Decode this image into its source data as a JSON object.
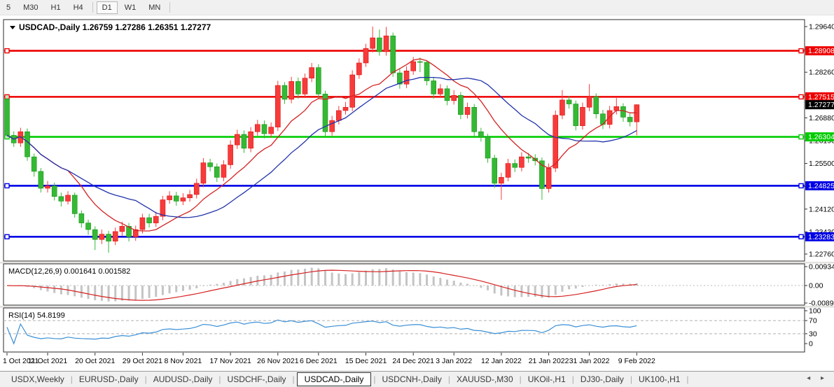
{
  "toolbar": {
    "timeframes": [
      "5",
      "M30",
      "H1",
      "H4",
      "D1",
      "W1",
      "MN"
    ],
    "active": "D1",
    "separators_after": [
      "H4",
      "MN"
    ]
  },
  "title_bar": {
    "collapse_icon": "▼",
    "symbol_label": "USDCAD-,Daily",
    "ohlc": "1.26759 1.27286 1.26351 1.27277"
  },
  "chart_data": {
    "type": "candlestick",
    "symbol": "USDCAD-",
    "period": "Daily",
    "ohlc_current": {
      "open": 1.26759,
      "high": 1.27286,
      "low": 1.26351,
      "close": 1.27277
    },
    "y_axis": {
      "min": 1.2276,
      "max": 1.2964,
      "tick_labels": [
        "1.29640",
        "1.28950",
        "1.28260",
        "1.27570",
        "1.26880",
        "1.26190",
        "1.25500",
        "1.24810",
        "1.24120",
        "1.23430",
        "1.22760"
      ],
      "tick_values": [
        1.2964,
        1.2895,
        1.2826,
        1.2757,
        1.2688,
        1.2619,
        1.255,
        1.2481,
        1.2412,
        1.2343,
        1.2276
      ]
    },
    "x_labels": [
      "1 Oct 2021",
      "11 Oct 2021",
      "20 Oct 2021",
      "29 Oct 2021",
      "8 Nov 2021",
      "17 Nov 2021",
      "26 Nov 2021",
      "6 Dec 2021",
      "15 Dec 2021",
      "24 Dec 2021",
      "3 Jan 2022",
      "12 Jan 2022",
      "21 Jan 2022",
      "31 Jan 2022",
      "9 Feb 2022"
    ],
    "x_label_indices": [
      0,
      6,
      13,
      20,
      26,
      33,
      40,
      46,
      53,
      60,
      66,
      73,
      80,
      86,
      93
    ],
    "candles": [
      [
        1.2745,
        1.2757,
        1.2623,
        1.2635
      ],
      [
        1.2635,
        1.2647,
        1.26,
        1.2612
      ],
      [
        1.2612,
        1.2658,
        1.26,
        1.2646
      ],
      [
        1.2646,
        1.2656,
        1.2558,
        1.257
      ],
      [
        1.257,
        1.258,
        1.251,
        1.2526
      ],
      [
        1.2526,
        1.2536,
        1.2462,
        1.2475
      ],
      [
        1.2475,
        1.2497,
        1.2462,
        1.2482
      ],
      [
        1.2482,
        1.2492,
        1.2438,
        1.245
      ],
      [
        1.245,
        1.2462,
        1.242,
        1.2436
      ],
      [
        1.2436,
        1.2466,
        1.2426,
        1.2454
      ],
      [
        1.2454,
        1.2462,
        1.2386,
        1.2398
      ],
      [
        1.2398,
        1.2408,
        1.2356,
        1.237
      ],
      [
        1.237,
        1.238,
        1.2334,
        1.235
      ],
      [
        1.235,
        1.236,
        1.2288,
        1.232
      ],
      [
        1.232,
        1.235,
        1.2306,
        1.2336
      ],
      [
        1.2336,
        1.2346,
        1.228,
        1.2315
      ],
      [
        1.2315,
        1.2356,
        1.2303,
        1.2344
      ],
      [
        1.2344,
        1.2374,
        1.233,
        1.236
      ],
      [
        1.236,
        1.237,
        1.2314,
        1.2328
      ],
      [
        1.2328,
        1.2362,
        1.2316,
        1.235
      ],
      [
        1.235,
        1.2398,
        1.2338,
        1.2386
      ],
      [
        1.2386,
        1.2398,
        1.2356,
        1.237
      ],
      [
        1.237,
        1.2404,
        1.2358,
        1.239
      ],
      [
        1.239,
        1.2452,
        1.2378,
        1.244
      ],
      [
        1.244,
        1.2466,
        1.2428,
        1.2452
      ],
      [
        1.2452,
        1.2464,
        1.2422,
        1.2436
      ],
      [
        1.2436,
        1.246,
        1.2424,
        1.2446
      ],
      [
        1.2446,
        1.247,
        1.2434,
        1.2456
      ],
      [
        1.2456,
        1.2504,
        1.2444,
        1.249
      ],
      [
        1.249,
        1.2566,
        1.2478,
        1.2552
      ],
      [
        1.2552,
        1.2564,
        1.2526,
        1.254
      ],
      [
        1.254,
        1.255,
        1.2494,
        1.2508
      ],
      [
        1.2508,
        1.256,
        1.2496,
        1.2546
      ],
      [
        1.2546,
        1.262,
        1.2534,
        1.2606
      ],
      [
        1.2606,
        1.2652,
        1.2594,
        1.2638
      ],
      [
        1.2638,
        1.265,
        1.2582,
        1.2596
      ],
      [
        1.2596,
        1.266,
        1.2584,
        1.2646
      ],
      [
        1.2646,
        1.2682,
        1.2634,
        1.2668
      ],
      [
        1.2668,
        1.268,
        1.2626,
        1.264
      ],
      [
        1.264,
        1.2674,
        1.2628,
        1.266
      ],
      [
        1.266,
        1.28,
        1.2648,
        1.2786
      ],
      [
        1.2786,
        1.2796,
        1.273,
        1.2744
      ],
      [
        1.2744,
        1.2812,
        1.2732,
        1.2798
      ],
      [
        1.2798,
        1.281,
        1.2746,
        1.276
      ],
      [
        1.276,
        1.2822,
        1.2748,
        1.2808
      ],
      [
        1.2808,
        1.2854,
        1.2796,
        1.284
      ],
      [
        1.284,
        1.285,
        1.2746,
        1.276
      ],
      [
        1.276,
        1.277,
        1.2632,
        1.2646
      ],
      [
        1.2646,
        1.2694,
        1.2634,
        1.268
      ],
      [
        1.268,
        1.2724,
        1.2668,
        1.271
      ],
      [
        1.271,
        1.2736,
        1.2698,
        1.272
      ],
      [
        1.272,
        1.2832,
        1.2708,
        1.2818
      ],
      [
        1.2818,
        1.2868,
        1.2806,
        1.2854
      ],
      [
        1.2854,
        1.2912,
        1.2842,
        1.2898
      ],
      [
        1.2898,
        1.2964,
        1.2886,
        1.293
      ],
      [
        1.293,
        1.2955,
        1.2876,
        1.2888
      ],
      [
        1.2888,
        1.2963,
        1.2876,
        1.2936
      ],
      [
        1.2936,
        1.2946,
        1.2812,
        1.2824
      ],
      [
        1.2824,
        1.2836,
        1.2776,
        1.279
      ],
      [
        1.279,
        1.2844,
        1.2778,
        1.283
      ],
      [
        1.283,
        1.2872,
        1.2818,
        1.2858
      ],
      [
        1.2858,
        1.287,
        1.2826,
        1.2856
      ],
      [
        1.2856,
        1.2862,
        1.2786,
        1.28
      ],
      [
        1.28,
        1.281,
        1.2746,
        1.276
      ],
      [
        1.276,
        1.279,
        1.2748,
        1.2776
      ],
      [
        1.2776,
        1.2786,
        1.2726,
        1.274
      ],
      [
        1.274,
        1.2772,
        1.2728,
        1.2756
      ],
      [
        1.2756,
        1.2766,
        1.2684,
        1.2698
      ],
      [
        1.2698,
        1.2734,
        1.2686,
        1.272
      ],
      [
        1.272,
        1.273,
        1.2632,
        1.2646
      ],
      [
        1.2646,
        1.2658,
        1.2616,
        1.263
      ],
      [
        1.263,
        1.264,
        1.2552,
        1.2566
      ],
      [
        1.2566,
        1.2576,
        1.2476,
        1.249
      ],
      [
        1.249,
        1.2522,
        1.244,
        1.2508
      ],
      [
        1.2508,
        1.2564,
        1.2496,
        1.255
      ],
      [
        1.255,
        1.2562,
        1.2524,
        1.2538
      ],
      [
        1.2538,
        1.2584,
        1.2526,
        1.257
      ],
      [
        1.257,
        1.2582,
        1.2552,
        1.2566
      ],
      [
        1.2566,
        1.2578,
        1.2544,
        1.2558
      ],
      [
        1.2558,
        1.2568,
        1.244,
        1.2474
      ],
      [
        1.2474,
        1.255,
        1.2462,
        1.2536
      ],
      [
        1.2536,
        1.271,
        1.2524,
        1.2696
      ],
      [
        1.2696,
        1.2772,
        1.2684,
        1.2742
      ],
      [
        1.2742,
        1.2754,
        1.2716,
        1.273
      ],
      [
        1.273,
        1.274,
        1.265,
        1.2664
      ],
      [
        1.2664,
        1.2734,
        1.2652,
        1.272
      ],
      [
        1.272,
        1.279,
        1.2708,
        1.2752
      ],
      [
        1.2752,
        1.2762,
        1.2686,
        1.27
      ],
      [
        1.27,
        1.2712,
        1.2654,
        1.2668
      ],
      [
        1.2668,
        1.2724,
        1.2656,
        1.271
      ],
      [
        1.271,
        1.2748,
        1.2698,
        1.2722
      ],
      [
        1.2722,
        1.2732,
        1.2676,
        1.269
      ],
      [
        1.269,
        1.2702,
        1.2662,
        1.2676
      ],
      [
        1.26759,
        1.27286,
        1.26351,
        1.27277
      ]
    ],
    "h_lines": [
      {
        "price": 1.28908,
        "label": "1.28908",
        "color": "#ee0000"
      },
      {
        "price": 1.27515,
        "label": "1.27515",
        "color": "#ee0000"
      },
      {
        "price": 1.26304,
        "label": "1.26304",
        "color": "#00cc00"
      },
      {
        "price": 1.24825,
        "label": "1.24825",
        "color": "#0000e6"
      },
      {
        "price": 1.23283,
        "label": "1.23283",
        "color": "#0000e6"
      }
    ],
    "price_badge": {
      "label": "1.27277",
      "value": 1.27277,
      "color": "#000000"
    },
    "ma_lines": [
      {
        "period": 10,
        "color": "#d42222"
      },
      {
        "period": 20,
        "color": "#2233aa"
      }
    ],
    "macd": {
      "label": "MACD(12,26,9) 0.001641 0.001582",
      "fast": 12,
      "slow": 26,
      "signal": 9,
      "value": 0.001641,
      "signal_value": 0.001582,
      "axis_labels": [
        "0.009345",
        "0.00",
        "-0.008907"
      ],
      "axis_max": 0.009345,
      "axis_min": -0.008907,
      "hist_color": "#c4c4c4",
      "line_color": "#d62020"
    },
    "rsi": {
      "label": "RSI(14) 54.8199",
      "period": 14,
      "value": 54.8199,
      "levels": [
        70,
        30
      ],
      "axis_labels": [
        "100",
        "70",
        "30",
        "0"
      ],
      "axis_values": [
        100,
        70,
        30,
        0
      ],
      "color": "#3a8fd6"
    },
    "colors": {
      "up_fill": "#f73b3b",
      "up_stroke": "#dd1111",
      "down_fill": "#35b935",
      "down_stroke": "#169516"
    }
  },
  "tabbar": {
    "tabs": [
      "USDX,Weekly",
      "EURUSD-,Daily",
      "AUDUSD-,Daily",
      "USDCHF-,Daily",
      "USDCAD-,Daily",
      "USDCNH-,Daily",
      "XAUUSD-,M30",
      "UKOil-,H1",
      "DJ30-,Daily",
      "UK100-,H1"
    ],
    "active": "USDCAD-,Daily",
    "nav_arrows": "◂  ▸"
  }
}
